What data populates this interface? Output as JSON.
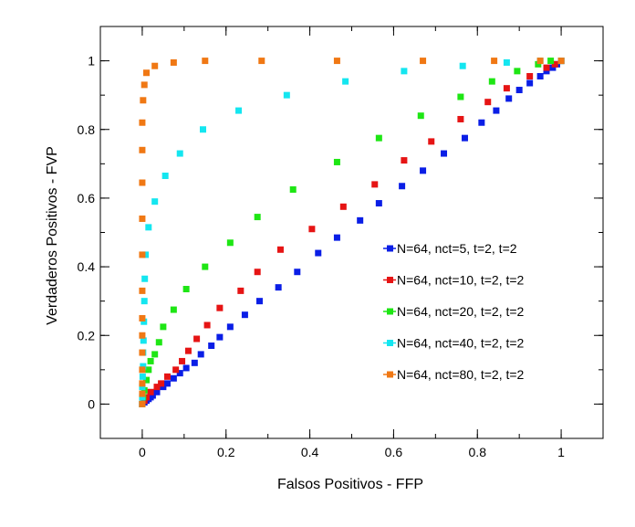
{
  "chart_data": {
    "type": "scatter",
    "title": "",
    "xlabel": "Falsos Positivos - FFP",
    "ylabel": "Verdaderos Positivos - FVP",
    "xlim": [
      -0.1,
      1.1
    ],
    "ylim": [
      -0.1,
      1.1
    ],
    "xticks": [
      0,
      0.2,
      0.4,
      0.6,
      0.8,
      1
    ],
    "xtick_labels": [
      "0",
      "0.2",
      "0.4",
      "0.6",
      "0.8",
      "1"
    ],
    "yticks": [
      0,
      0.2,
      0.4,
      0.6,
      0.8,
      1
    ],
    "ytick_labels": [
      "0",
      "0.2",
      "0.4",
      "0.6",
      "0.8",
      "1"
    ],
    "grid": false,
    "legend_position": "right",
    "series": [
      {
        "name": "N=64, nct=5, t=2, t=2",
        "color": "#0a1ee6",
        "points": [
          [
            0,
            0
          ],
          [
            0.005,
            0.005
          ],
          [
            0.01,
            0.01
          ],
          [
            0.015,
            0.015
          ],
          [
            0.02,
            0.02
          ],
          [
            0.025,
            0.025
          ],
          [
            0.035,
            0.035
          ],
          [
            0.05,
            0.05
          ],
          [
            0.06,
            0.06
          ],
          [
            0.075,
            0.075
          ],
          [
            0.09,
            0.09
          ],
          [
            0.105,
            0.105
          ],
          [
            0.125,
            0.12
          ],
          [
            0.14,
            0.145
          ],
          [
            0.165,
            0.17
          ],
          [
            0.185,
            0.195
          ],
          [
            0.21,
            0.225
          ],
          [
            0.245,
            0.26
          ],
          [
            0.28,
            0.3
          ],
          [
            0.325,
            0.34
          ],
          [
            0.37,
            0.385
          ],
          [
            0.42,
            0.44
          ],
          [
            0.465,
            0.485
          ],
          [
            0.52,
            0.535
          ],
          [
            0.565,
            0.585
          ],
          [
            0.62,
            0.635
          ],
          [
            0.67,
            0.68
          ],
          [
            0.72,
            0.73
          ],
          [
            0.77,
            0.775
          ],
          [
            0.81,
            0.82
          ],
          [
            0.845,
            0.855
          ],
          [
            0.875,
            0.89
          ],
          [
            0.9,
            0.915
          ],
          [
            0.925,
            0.935
          ],
          [
            0.95,
            0.955
          ],
          [
            0.965,
            0.97
          ],
          [
            0.98,
            0.98
          ],
          [
            0.99,
            0.99
          ],
          [
            1,
            1
          ]
        ]
      },
      {
        "name": "N=64, nct=10, t=2, t=2",
        "color": "#e61414",
        "points": [
          [
            0,
            0
          ],
          [
            0.005,
            0.01
          ],
          [
            0.01,
            0.02
          ],
          [
            0.02,
            0.035
          ],
          [
            0.035,
            0.05
          ],
          [
            0.045,
            0.06
          ],
          [
            0.06,
            0.08
          ],
          [
            0.08,
            0.1
          ],
          [
            0.095,
            0.125
          ],
          [
            0.11,
            0.155
          ],
          [
            0.13,
            0.19
          ],
          [
            0.155,
            0.23
          ],
          [
            0.185,
            0.28
          ],
          [
            0.235,
            0.33
          ],
          [
            0.275,
            0.385
          ],
          [
            0.33,
            0.45
          ],
          [
            0.405,
            0.51
          ],
          [
            0.48,
            0.575
          ],
          [
            0.555,
            0.64
          ],
          [
            0.625,
            0.71
          ],
          [
            0.69,
            0.765
          ],
          [
            0.76,
            0.83
          ],
          [
            0.825,
            0.88
          ],
          [
            0.87,
            0.92
          ],
          [
            0.925,
            0.955
          ],
          [
            0.965,
            0.98
          ],
          [
            0.985,
            0.99
          ],
          [
            1,
            1
          ]
        ]
      },
      {
        "name": "N=64, nct=20, t=2, t=2",
        "color": "#1ee614",
        "points": [
          [
            0,
            0
          ],
          [
            0.002,
            0.02
          ],
          [
            0.005,
            0.04
          ],
          [
            0.01,
            0.07
          ],
          [
            0.015,
            0.1
          ],
          [
            0.02,
            0.125
          ],
          [
            0.03,
            0.145
          ],
          [
            0.04,
            0.18
          ],
          [
            0.05,
            0.225
          ],
          [
            0.075,
            0.275
          ],
          [
            0.105,
            0.335
          ],
          [
            0.15,
            0.4
          ],
          [
            0.21,
            0.47
          ],
          [
            0.275,
            0.545
          ],
          [
            0.36,
            0.625
          ],
          [
            0.465,
            0.705
          ],
          [
            0.565,
            0.775
          ],
          [
            0.665,
            0.84
          ],
          [
            0.76,
            0.895
          ],
          [
            0.835,
            0.94
          ],
          [
            0.895,
            0.97
          ],
          [
            0.945,
            0.99
          ],
          [
            0.975,
            1
          ],
          [
            1,
            1
          ]
        ]
      },
      {
        "name": "N=64, nct=40, t=2, t=2",
        "color": "#14e6f0",
        "points": [
          [
            0,
            0
          ],
          [
            0,
            0.02
          ],
          [
            0,
            0.05
          ],
          [
            0.001,
            0.08
          ],
          [
            0.002,
            0.11
          ],
          [
            0.002,
            0.15
          ],
          [
            0.003,
            0.185
          ],
          [
            0.004,
            0.24
          ],
          [
            0.005,
            0.3
          ],
          [
            0.006,
            0.365
          ],
          [
            0.008,
            0.435
          ],
          [
            0.015,
            0.515
          ],
          [
            0.03,
            0.59
          ],
          [
            0.055,
            0.665
          ],
          [
            0.09,
            0.73
          ],
          [
            0.145,
            0.8
          ],
          [
            0.23,
            0.855
          ],
          [
            0.345,
            0.9
          ],
          [
            0.485,
            0.94
          ],
          [
            0.625,
            0.97
          ],
          [
            0.765,
            0.985
          ],
          [
            0.87,
            0.995
          ],
          [
            0.95,
            1
          ],
          [
            1,
            1
          ]
        ]
      },
      {
        "name": "N=64, nct=80, t=2, t=2",
        "color": "#f07814",
        "points": [
          [
            0,
            0
          ],
          [
            0,
            0.03
          ],
          [
            0,
            0.06
          ],
          [
            0,
            0.1
          ],
          [
            0,
            0.15
          ],
          [
            0,
            0.2
          ],
          [
            0,
            0.25
          ],
          [
            0,
            0.33
          ],
          [
            0,
            0.435
          ],
          [
            0,
            0.54
          ],
          [
            0,
            0.645
          ],
          [
            0,
            0.74
          ],
          [
            0,
            0.82
          ],
          [
            0.002,
            0.885
          ],
          [
            0.005,
            0.93
          ],
          [
            0.01,
            0.965
          ],
          [
            0.03,
            0.985
          ],
          [
            0.075,
            0.995
          ],
          [
            0.15,
            1
          ],
          [
            0.285,
            1
          ],
          [
            0.465,
            1
          ],
          [
            0.67,
            1
          ],
          [
            0.84,
            1
          ],
          [
            0.95,
            1
          ],
          [
            1,
            1
          ]
        ]
      }
    ]
  }
}
